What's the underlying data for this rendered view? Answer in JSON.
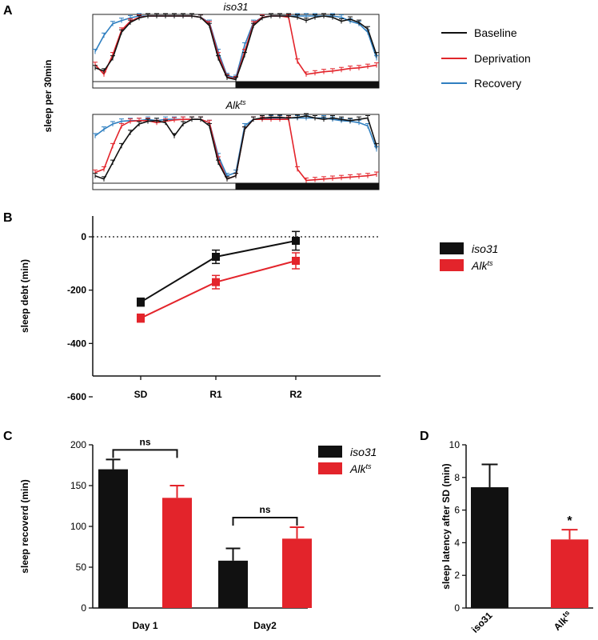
{
  "panels": {
    "A": {
      "letter": "A",
      "ylabel": "sleep per 30min",
      "top_title": "iso31",
      "bottom_title": "Alk",
      "bottom_title_sup": "ts",
      "legend": [
        {
          "label": "Baseline",
          "color": "#111111"
        },
        {
          "label": "Deprivation",
          "color": "#e0262b"
        },
        {
          "label": "Recovery",
          "color": "#2f7fc0"
        }
      ]
    },
    "B": {
      "letter": "B"
    },
    "C": {
      "letter": "C"
    },
    "D": {
      "letter": "D"
    }
  },
  "colors": {
    "iso31": "#111111",
    "alk": "#e3242b",
    "recovery": "#2f7fc0"
  },
  "chart_data": [
    {
      "panel": "A-top",
      "type": "line",
      "title": "iso31",
      "ylabel": "sleep per 30min",
      "series": [
        {
          "name": "Baseline",
          "values": [
            0.2,
            0.15,
            0.35,
            0.75,
            0.9,
            0.97,
            1.0,
            1.0,
            1.0,
            1.0,
            1.0,
            1.0,
            0.98,
            0.85,
            0.35,
            0.05,
            0.02,
            0.4,
            0.85,
            0.97,
            1.0,
            1.0,
            1.0,
            0.98,
            0.93,
            0.98,
            1.0,
            0.98,
            0.92,
            0.95,
            0.9,
            0.8,
            0.4
          ]
        },
        {
          "name": "Deprivation",
          "values": [
            0.25,
            0.1,
            0.4,
            0.78,
            0.92,
            0.98,
            1.0,
            1.0,
            1.0,
            1.0,
            1.0,
            1.0,
            0.98,
            0.88,
            0.4,
            0.06,
            0.03,
            0.45,
            0.88,
            0.98,
            1.0,
            1.0,
            0.98,
            0.3,
            0.1,
            0.12,
            0.14,
            0.15,
            0.17,
            0.19,
            0.2,
            0.22,
            0.24
          ]
        },
        {
          "name": "Recovery",
          "values": [
            0.45,
            0.7,
            0.88,
            0.93,
            0.97,
            1.0,
            1.0,
            1.0,
            1.0,
            1.0,
            1.0,
            1.0,
            0.98,
            0.9,
            0.45,
            0.08,
            0.05,
            0.55,
            0.9,
            0.98,
            1.0,
            1.0,
            1.0,
            1.0,
            1.0,
            1.0,
            1.0,
            1.0,
            0.98,
            0.92,
            0.88,
            0.75,
            0.35
          ]
        }
      ]
    },
    {
      "panel": "A-bottom",
      "type": "line",
      "title": "Alk ts",
      "series": [
        {
          "name": "Baseline",
          "values": [
            0.1,
            0.05,
            0.3,
            0.55,
            0.75,
            0.88,
            0.92,
            0.93,
            0.9,
            0.7,
            0.88,
            0.95,
            0.95,
            0.85,
            0.3,
            0.05,
            0.1,
            0.8,
            0.95,
            0.97,
            0.98,
            0.98,
            0.97,
            0.98,
            1.0,
            0.97,
            0.95,
            0.97,
            0.95,
            0.93,
            0.95,
            0.97,
            0.55
          ]
        },
        {
          "name": "Deprivation",
          "values": [
            0.15,
            0.2,
            0.55,
            0.85,
            0.92,
            0.93,
            0.93,
            0.9,
            0.92,
            0.94,
            0.95,
            0.95,
            0.95,
            0.9,
            0.35,
            0.05,
            0.1,
            0.8,
            0.95,
            0.95,
            0.95,
            0.95,
            0.95,
            0.2,
            0.03,
            0.04,
            0.05,
            0.06,
            0.07,
            0.08,
            0.09,
            0.1,
            0.12
          ]
        },
        {
          "name": "Recovery",
          "values": [
            0.7,
            0.8,
            0.88,
            0.92,
            0.93,
            0.93,
            0.95,
            0.93,
            0.95,
            0.95,
            0.95,
            0.95,
            0.95,
            0.9,
            0.4,
            0.1,
            0.15,
            0.85,
            0.95,
            0.95,
            0.97,
            0.97,
            0.97,
            0.97,
            0.97,
            0.97,
            0.97,
            0.95,
            0.93,
            0.92,
            0.9,
            0.85,
            0.5
          ]
        }
      ]
    },
    {
      "panel": "B",
      "type": "line",
      "categories": [
        "SD",
        "R1",
        "R2"
      ],
      "ylabel": "sleep debt (min)",
      "ylim": [
        -600,
        0
      ],
      "yticks": [
        0,
        -200,
        -400,
        -600
      ],
      "series": [
        {
          "name": "iso31",
          "values": [
            -245,
            -75,
            -15
          ],
          "errors": [
            15,
            25,
            35
          ]
        },
        {
          "name": "Alk",
          "name_sup": "ts",
          "values": [
            -305,
            -170,
            -90
          ],
          "errors": [
            15,
            25,
            30
          ]
        }
      ]
    },
    {
      "panel": "C",
      "type": "bar",
      "categories": [
        "Day 1",
        "Day2"
      ],
      "ylabel": "sleep recoverd (min)",
      "ylim": [
        0,
        200
      ],
      "yticks": [
        0,
        50,
        100,
        150,
        200
      ],
      "series": [
        {
          "name": "iso31",
          "values": [
            170,
            58
          ],
          "errors": [
            12,
            15
          ]
        },
        {
          "name": "Alk",
          "name_sup": "ts",
          "values": [
            135,
            85
          ],
          "errors": [
            15,
            14
          ]
        }
      ],
      "annotations": [
        "ns",
        "ns"
      ]
    },
    {
      "panel": "D",
      "type": "bar",
      "categories": [
        "iso31",
        "Alk"
      ],
      "category_sup": [
        "",
        "ts"
      ],
      "ylabel": "sleep latency after SD (min)",
      "ylim": [
        0,
        10
      ],
      "yticks": [
        0,
        2,
        4,
        6,
        8,
        10
      ],
      "values": [
        7.4,
        4.2
      ],
      "errors": [
        1.4,
        0.6
      ],
      "annotation": "*"
    }
  ]
}
